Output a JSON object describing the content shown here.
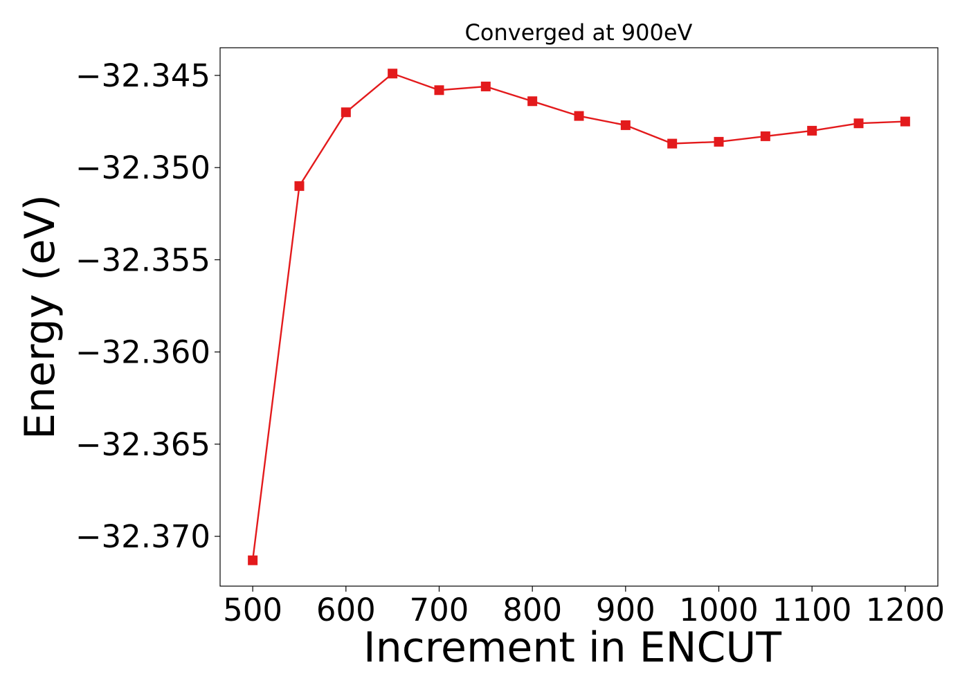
{
  "chart_data": {
    "type": "line",
    "title": "Converged at 900eV",
    "xlabel": "Increment in ENCUT",
    "ylabel": "Energy (eV)",
    "x": [
      500,
      550,
      600,
      650,
      700,
      750,
      800,
      850,
      900,
      950,
      1000,
      1050,
      1100,
      1150,
      1200
    ],
    "series": [
      {
        "name": "",
        "values": [
          -32.3713,
          -32.351,
          -32.347,
          -32.3449,
          -32.3458,
          -32.3456,
          -32.3464,
          -32.3472,
          -32.3477,
          -32.3487,
          -32.3486,
          -32.3483,
          -32.348,
          -32.3476,
          -32.3475
        ],
        "color": "#e31a1c",
        "marker": "square"
      }
    ],
    "xticks": [
      500,
      600,
      700,
      800,
      900,
      1000,
      1100,
      1200
    ],
    "yticks": [
      -32.37,
      -32.365,
      -32.36,
      -32.355,
      -32.35,
      -32.345
    ],
    "ytick_labels": [
      "−32.370",
      "−32.365",
      "−32.360",
      "−32.355",
      "−32.350",
      "−32.345"
    ],
    "xlim": [
      465,
      1235
    ],
    "ylim": [
      -32.3727,
      -32.3435
    ],
    "grid": false,
    "legend": "none"
  }
}
